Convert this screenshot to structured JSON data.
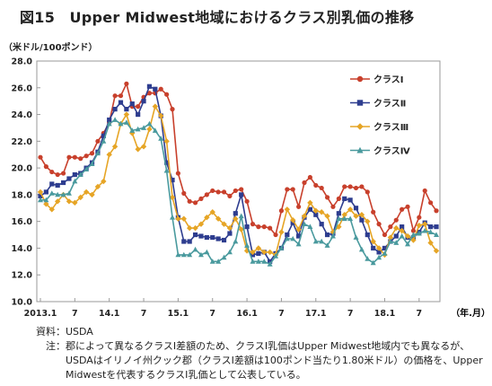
{
  "title": "図15　Upper Midwest地域におけるクラス別乳価の推移",
  "unit_label": "（米ドル/100ポンド）",
  "source_label": "資料：",
  "source_text": "USDA",
  "note_label": "注：",
  "note_text": "郡によって異なるクラスⅠ差額のため、クラスⅠ乳価はUpper Midwest地域内でも異なるが、USDAはイリノイ州クック郡（クラスⅠ差額は100ポンド当たり1.80米ドル）の価格を、Upper Midwestを代表するクラスⅠ乳価として公表している。",
  "chart_data": {
    "type": "line",
    "xlabel": "（年.月）",
    "ylabel": "（米ドル/100ポンド）",
    "ylim": [
      10.0,
      28.0
    ],
    "y_ticks": [
      "10.0",
      "12.0",
      "14.0",
      "16.0",
      "18.0",
      "20.0",
      "22.0",
      "24.0",
      "26.0",
      "28.0"
    ],
    "x_ticks": [
      {
        "i": 0,
        "label": "2013.1"
      },
      {
        "i": 6,
        "label": "7"
      },
      {
        "i": 12,
        "label": "14.1"
      },
      {
        "i": 18,
        "label": "7"
      },
      {
        "i": 24,
        "label": "15.1"
      },
      {
        "i": 30,
        "label": "7"
      },
      {
        "i": 36,
        "label": "16.1"
      },
      {
        "i": 42,
        "label": "7"
      },
      {
        "i": 48,
        "label": "17.1"
      },
      {
        "i": 54,
        "label": "7"
      },
      {
        "i": 60,
        "label": "18.1"
      },
      {
        "i": 66,
        "label": "7"
      }
    ],
    "grid": false,
    "legend": "top-right",
    "series": [
      {
        "name": "クラスⅠ",
        "color": "#c8402c",
        "marker": "circle",
        "values": [
          20.8,
          20.1,
          19.7,
          19.5,
          19.6,
          20.8,
          20.8,
          20.7,
          20.9,
          21.1,
          22.0,
          22.6,
          23.4,
          25.4,
          25.4,
          26.3,
          24.6,
          24.6,
          25.3,
          25.6,
          25.6,
          25.9,
          25.5,
          24.4,
          19.6,
          18.1,
          17.5,
          17.4,
          17.7,
          18.0,
          18.3,
          18.2,
          18.2,
          17.9,
          18.3,
          18.4,
          17.5,
          15.8,
          15.6,
          15.6,
          15.5,
          15.0,
          16.8,
          18.4,
          18.4,
          17.1,
          18.9,
          19.3,
          18.7,
          18.5,
          17.8,
          17.1,
          17.7,
          18.6,
          18.6,
          18.5,
          18.6,
          18.2,
          16.7,
          15.8,
          15.0,
          15.6,
          16.1,
          16.9,
          17.1,
          15.3,
          16.3,
          18.3,
          17.4,
          16.8
        ]
      },
      {
        "name": "クラスⅡ",
        "color": "#2e3d8f",
        "marker": "square",
        "values": [
          17.9,
          18.2,
          18.8,
          18.7,
          18.9,
          19.2,
          19.5,
          19.6,
          20.0,
          20.4,
          21.2,
          22.4,
          23.6,
          24.4,
          24.9,
          24.4,
          24.8,
          24.0,
          25.0,
          26.1,
          25.9,
          23.9,
          20.4,
          19.1,
          16.3,
          14.5,
          14.5,
          15.0,
          14.9,
          14.8,
          14.8,
          14.7,
          14.6,
          15.1,
          16.6,
          18.0,
          15.6,
          13.5,
          13.6,
          13.7,
          13.0,
          13.6,
          14.0,
          15.0,
          15.9,
          14.9,
          16.3,
          16.9,
          16.5,
          15.8,
          15.0,
          15.1,
          16.6,
          17.7,
          17.6,
          17.0,
          16.1,
          15.0,
          14.0,
          13.7,
          14.0,
          14.5,
          14.9,
          15.6,
          14.8,
          14.8,
          15.2,
          15.9,
          15.6,
          15.6
        ]
      },
      {
        "name": "クラスⅢ",
        "color": "#e6a526",
        "marker": "diamond",
        "values": [
          18.2,
          17.3,
          16.9,
          17.5,
          18.0,
          17.5,
          17.4,
          17.8,
          18.2,
          18.0,
          18.6,
          19.0,
          21.0,
          21.6,
          23.3,
          24.0,
          22.6,
          21.4,
          21.6,
          22.9,
          24.6,
          23.9,
          22.0,
          17.8,
          16.2,
          16.2,
          15.5,
          15.5,
          15.8,
          16.3,
          16.7,
          16.2,
          15.8,
          15.5,
          16.2,
          15.4,
          13.8,
          13.7,
          14.0,
          13.7,
          13.7,
          13.5,
          15.2,
          16.9,
          16.1,
          15.4,
          16.4,
          17.4,
          16.8,
          16.7,
          16.4,
          15.2,
          15.6,
          16.5,
          16.9,
          16.4,
          16.5,
          16.0,
          14.5,
          14.0,
          13.5,
          14.8,
          15.5,
          15.3,
          14.9,
          14.6,
          15.7,
          15.8,
          14.4,
          13.8
        ]
      },
      {
        "name": "クラスⅣ",
        "color": "#4a9a9e",
        "marker": "triangle",
        "values": [
          17.6,
          17.6,
          18.1,
          18.0,
          18.0,
          18.1,
          19.0,
          19.5,
          19.9,
          20.3,
          21.1,
          22.0,
          23.3,
          23.6,
          23.3,
          23.4,
          22.8,
          22.9,
          23.0,
          23.3,
          22.8,
          22.2,
          19.8,
          16.3,
          13.5,
          13.5,
          13.5,
          13.9,
          13.5,
          13.7,
          13.0,
          13.0,
          13.3,
          13.7,
          14.5,
          16.4,
          14.2,
          13.0,
          13.0,
          13.0,
          12.8,
          13.4,
          14.0,
          14.7,
          14.7,
          14.3,
          15.8,
          15.6,
          14.5,
          14.5,
          14.2,
          14.9,
          16.2,
          16.2,
          16.2,
          14.8,
          13.9,
          13.2,
          12.9,
          13.3,
          13.6,
          14.5,
          14.4,
          14.9,
          14.3,
          15.0,
          15.1,
          15.3,
          15.2,
          15.0
        ]
      }
    ]
  }
}
